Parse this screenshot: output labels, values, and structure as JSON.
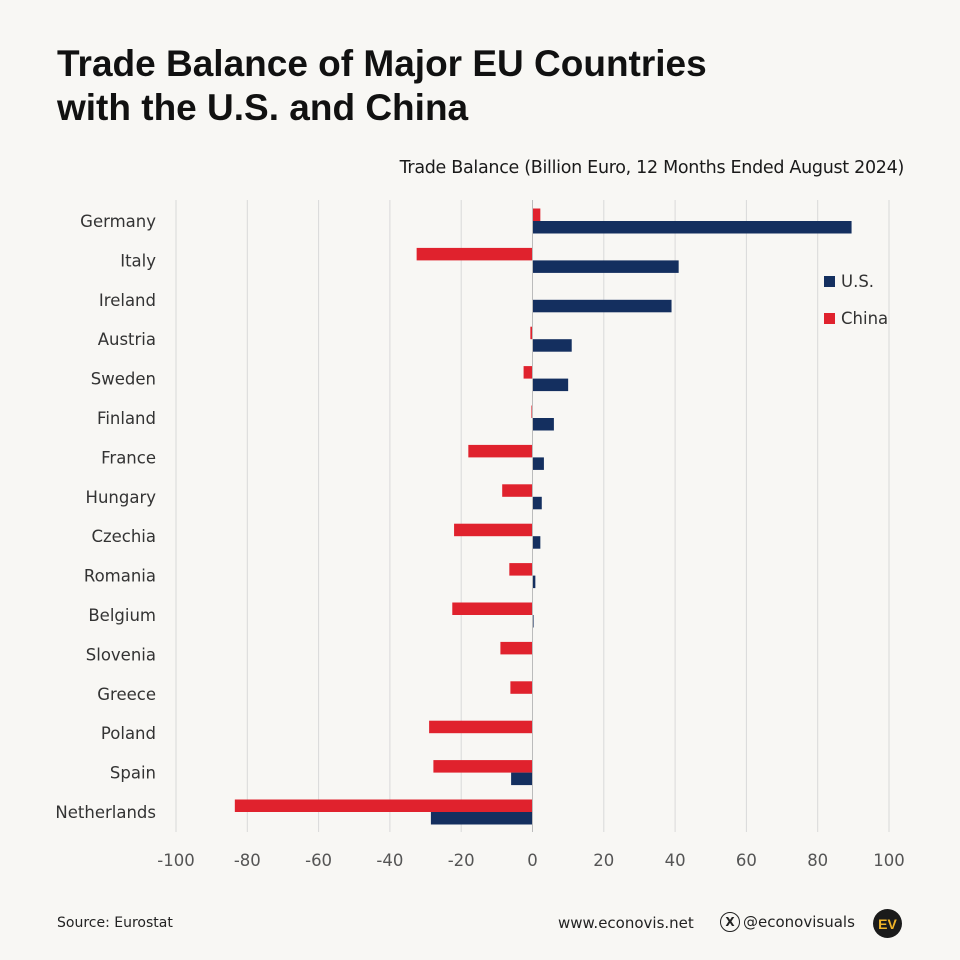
{
  "title_line1": "Trade Balance of Major EU Countries",
  "title_line2": "with the U.S. and China",
  "footer": {
    "source": "Source: Eurostat",
    "website": "www.econovis.net",
    "social_handle": "@econovisuals",
    "logo_text": "EV"
  },
  "chart_data": {
    "type": "bar",
    "orientation": "horizontal",
    "title": "Trade Balance (Billion Euro, 12 Months Ended August 2024)",
    "categories": [
      "Germany",
      "Italy",
      "Ireland",
      "Austria",
      "Sweden",
      "Finland",
      "France",
      "Hungary",
      "Czechia",
      "Romania",
      "Belgium",
      "Slovenia",
      "Greece",
      "Poland",
      "Spain",
      "Netherlands"
    ],
    "series": [
      {
        "name": "U.S.",
        "color": "#142f5f",
        "values": [
          89.5,
          41,
          39,
          11,
          10,
          6,
          3.2,
          2.6,
          2.2,
          0.8,
          0.3,
          0,
          0,
          0,
          -6,
          -28.5
        ]
      },
      {
        "name": "China",
        "color": "#e0222d",
        "values": [
          2.2,
          -32.5,
          0,
          -0.6,
          -2.5,
          -0.3,
          -18,
          -8.5,
          -22,
          -6.5,
          -22.5,
          -9,
          -6.2,
          -29,
          -27.8,
          -83.5
        ]
      }
    ],
    "xlim": [
      -100,
      100
    ],
    "xticks": [
      -100,
      -80,
      -60,
      -40,
      -20,
      0,
      20,
      40,
      60,
      80,
      100
    ],
    "grid": true,
    "legend_position": "top-right"
  }
}
